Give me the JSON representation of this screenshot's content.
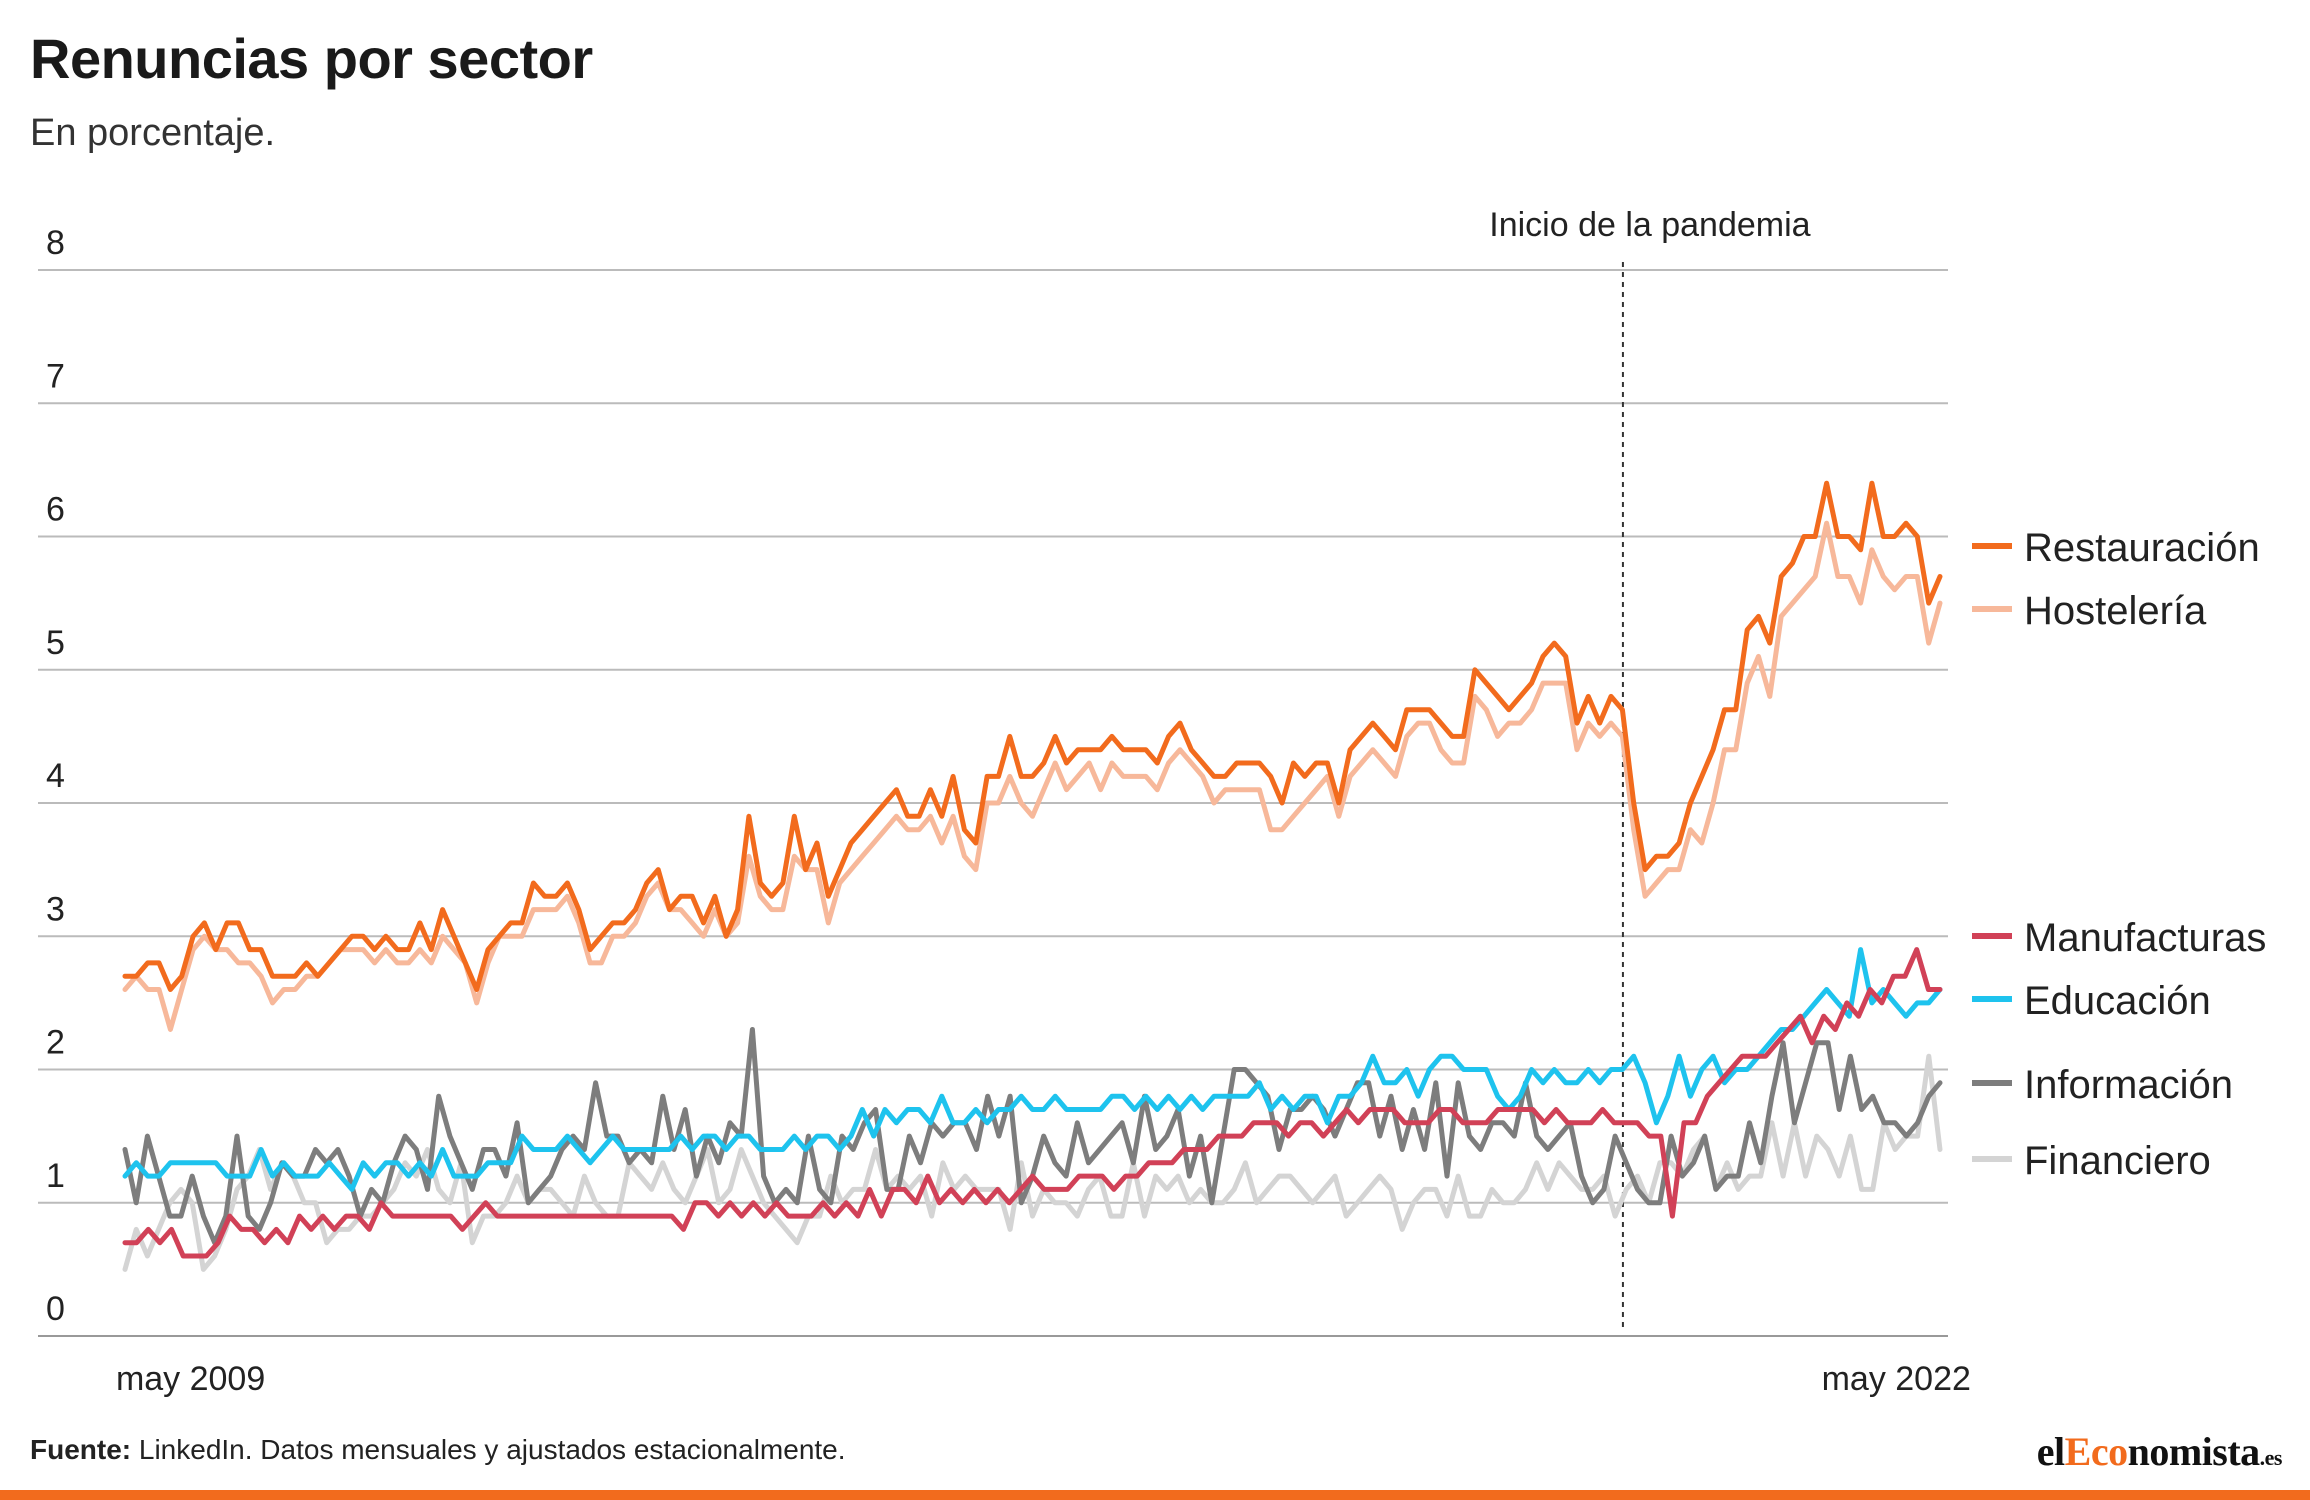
{
  "header": {
    "title": "Renuncias por sector",
    "subtitle": "En porcentaje."
  },
  "annotation": {
    "label": "Inicio de la pandemia"
  },
  "footer": {
    "source_label": "Fuente:",
    "source_text": " LinkedIn. Datos mensuales y ajustados estacionalmente.",
    "logo_part1": "el",
    "logo_part2": "Eco",
    "logo_part3": "nomista",
    "logo_suffix": ".es"
  },
  "chart_data": {
    "type": "line",
    "x_start": "2008-11",
    "x_end": "2022-09",
    "x_tick_labels": [
      "may 2009",
      "may 2022"
    ],
    "x_tick_dates": [
      "2009-05",
      "2022-05"
    ],
    "ylim": [
      0,
      8
    ],
    "y_ticks": [
      0,
      1,
      2,
      3,
      4,
      5,
      6,
      7,
      8
    ],
    "grid": true,
    "legend_placement": "right",
    "event_marker": {
      "label": "Inicio de la pandemia",
      "date": "2020-04"
    },
    "series": [
      {
        "name": "Restauración",
        "color": "#f26b1d",
        "values": [
          2.7,
          2.7,
          2.8,
          2.8,
          2.6,
          2.7,
          3.0,
          3.1,
          2.9,
          3.1,
          3.1,
          2.9,
          2.9,
          2.7,
          2.7,
          2.7,
          2.8,
          2.7,
          2.8,
          2.9,
          3.0,
          3.0,
          2.9,
          3.0,
          2.9,
          2.9,
          3.1,
          2.9,
          3.2,
          3.0,
          2.8,
          2.6,
          2.9,
          3.0,
          3.1,
          3.1,
          3.4,
          3.3,
          3.3,
          3.4,
          3.2,
          2.9,
          3.0,
          3.1,
          3.1,
          3.2,
          3.4,
          3.5,
          3.2,
          3.3,
          3.3,
          3.1,
          3.3,
          3.0,
          3.2,
          3.9,
          3.4,
          3.3,
          3.4,
          3.9,
          3.5,
          3.7,
          3.3,
          3.5,
          3.7,
          3.8,
          3.9,
          4.0,
          4.1,
          3.9,
          3.9,
          4.1,
          3.9,
          4.2,
          3.8,
          3.7,
          4.2,
          4.2,
          4.5,
          4.2,
          4.2,
          4.3,
          4.5,
          4.3,
          4.4,
          4.4,
          4.4,
          4.5,
          4.4,
          4.4,
          4.4,
          4.3,
          4.5,
          4.6,
          4.4,
          4.3,
          4.2,
          4.2,
          4.3,
          4.3,
          4.3,
          4.2,
          4.0,
          4.3,
          4.2,
          4.3,
          4.3,
          4.0,
          4.4,
          4.5,
          4.6,
          4.5,
          4.4,
          4.7,
          4.7,
          4.7,
          4.6,
          4.5,
          4.5,
          5.0,
          4.9,
          4.8,
          4.7,
          4.8,
          4.9,
          5.1,
          5.2,
          5.1,
          4.6,
          4.8,
          4.6,
          4.8,
          4.7,
          4.0,
          3.5,
          3.6,
          3.6,
          3.7,
          4.0,
          4.2,
          4.4,
          4.7,
          4.7,
          5.3,
          5.4,
          5.2,
          5.7,
          5.8,
          6.0,
          6.0,
          6.4,
          6.0,
          6.0,
          5.9,
          6.4,
          6.0,
          6.0,
          6.1,
          6.0,
          5.5,
          5.7
        ]
      },
      {
        "name": "Hostelería",
        "color": "#f7b89a",
        "values": [
          2.6,
          2.7,
          2.6,
          2.6,
          2.3,
          2.6,
          2.9,
          3.0,
          2.9,
          2.9,
          2.8,
          2.8,
          2.7,
          2.5,
          2.6,
          2.6,
          2.7,
          2.7,
          2.8,
          2.9,
          2.9,
          2.9,
          2.8,
          2.9,
          2.8,
          2.8,
          2.9,
          2.8,
          3.0,
          2.9,
          2.8,
          2.5,
          2.8,
          3.0,
          3.0,
          3.0,
          3.2,
          3.2,
          3.2,
          3.3,
          3.1,
          2.8,
          2.8,
          3.0,
          3.0,
          3.1,
          3.3,
          3.4,
          3.2,
          3.2,
          3.1,
          3.0,
          3.2,
          3.0,
          3.1,
          3.6,
          3.3,
          3.2,
          3.2,
          3.6,
          3.5,
          3.5,
          3.1,
          3.4,
          3.5,
          3.6,
          3.7,
          3.8,
          3.9,
          3.8,
          3.8,
          3.9,
          3.7,
          3.9,
          3.6,
          3.5,
          4.0,
          4.0,
          4.2,
          4.0,
          3.9,
          4.1,
          4.3,
          4.1,
          4.2,
          4.3,
          4.1,
          4.3,
          4.2,
          4.2,
          4.2,
          4.1,
          4.3,
          4.4,
          4.3,
          4.2,
          4.0,
          4.1,
          4.1,
          4.1,
          4.1,
          3.8,
          3.8,
          3.9,
          4.0,
          4.1,
          4.2,
          3.9,
          4.2,
          4.3,
          4.4,
          4.3,
          4.2,
          4.5,
          4.6,
          4.6,
          4.4,
          4.3,
          4.3,
          4.8,
          4.7,
          4.5,
          4.6,
          4.6,
          4.7,
          4.9,
          4.9,
          4.9,
          4.4,
          4.6,
          4.5,
          4.6,
          4.5,
          3.8,
          3.3,
          3.4,
          3.5,
          3.5,
          3.8,
          3.7,
          4.0,
          4.4,
          4.4,
          4.9,
          5.1,
          4.8,
          5.4,
          5.5,
          5.6,
          5.7,
          6.1,
          5.7,
          5.7,
          5.5,
          5.9,
          5.7,
          5.6,
          5.7,
          5.7,
          5.2,
          5.5
        ]
      },
      {
        "name": "Manufacturas",
        "color": "#d14157",
        "values": [
          0.7,
          0.7,
          0.8,
          0.7,
          0.8,
          0.6,
          0.6,
          0.6,
          0.7,
          0.9,
          0.8,
          0.8,
          0.7,
          0.8,
          0.7,
          0.9,
          0.8,
          0.9,
          0.8,
          0.9,
          0.9,
          0.8,
          1.0,
          0.9,
          0.9,
          0.9,
          0.9,
          0.9,
          0.9,
          0.8,
          0.9,
          1.0,
          0.9,
          0.9,
          0.9,
          0.9,
          0.9,
          0.9,
          0.9,
          0.9,
          0.9,
          0.9,
          0.9,
          0.9,
          0.9,
          0.9,
          0.9,
          0.9,
          0.8,
          1.0,
          1.0,
          0.9,
          1.0,
          0.9,
          1.0,
          0.9,
          1.0,
          0.9,
          0.9,
          0.9,
          1.0,
          0.9,
          1.0,
          0.9,
          1.1,
          0.9,
          1.1,
          1.1,
          1.0,
          1.2,
          1.0,
          1.1,
          1.0,
          1.1,
          1.0,
          1.1,
          1.0,
          1.1,
          1.2,
          1.1,
          1.1,
          1.1,
          1.2,
          1.2,
          1.2,
          1.1,
          1.2,
          1.2,
          1.3,
          1.3,
          1.3,
          1.4,
          1.4,
          1.4,
          1.5,
          1.5,
          1.5,
          1.6,
          1.6,
          1.6,
          1.5,
          1.6,
          1.6,
          1.5,
          1.6,
          1.7,
          1.6,
          1.7,
          1.7,
          1.7,
          1.6,
          1.6,
          1.6,
          1.7,
          1.7,
          1.6,
          1.6,
          1.6,
          1.7,
          1.7,
          1.7,
          1.7,
          1.6,
          1.7,
          1.6,
          1.6,
          1.6,
          1.7,
          1.6,
          1.6,
          1.6,
          1.5,
          1.5,
          0.9,
          1.6,
          1.6,
          1.8,
          1.9,
          2.0,
          2.1,
          2.1,
          2.1,
          2.2,
          2.3,
          2.4,
          2.2,
          2.4,
          2.3,
          2.5,
          2.4,
          2.6,
          2.5,
          2.7,
          2.7,
          2.9,
          2.6,
          2.6
        ]
      },
      {
        "name": "Educación",
        "color": "#1ec3ee",
        "values": [
          1.2,
          1.3,
          1.2,
          1.2,
          1.3,
          1.3,
          1.3,
          1.3,
          1.3,
          1.2,
          1.2,
          1.2,
          1.4,
          1.2,
          1.3,
          1.2,
          1.2,
          1.2,
          1.3,
          1.2,
          1.1,
          1.3,
          1.2,
          1.3,
          1.3,
          1.2,
          1.3,
          1.2,
          1.4,
          1.2,
          1.2,
          1.2,
          1.3,
          1.3,
          1.3,
          1.5,
          1.4,
          1.4,
          1.4,
          1.5,
          1.4,
          1.3,
          1.4,
          1.5,
          1.4,
          1.4,
          1.4,
          1.4,
          1.4,
          1.5,
          1.4,
          1.5,
          1.5,
          1.4,
          1.5,
          1.5,
          1.4,
          1.4,
          1.4,
          1.5,
          1.4,
          1.5,
          1.5,
          1.4,
          1.5,
          1.7,
          1.5,
          1.7,
          1.6,
          1.7,
          1.7,
          1.6,
          1.8,
          1.6,
          1.6,
          1.7,
          1.6,
          1.7,
          1.7,
          1.8,
          1.7,
          1.7,
          1.8,
          1.7,
          1.7,
          1.7,
          1.7,
          1.8,
          1.8,
          1.7,
          1.8,
          1.7,
          1.8,
          1.7,
          1.8,
          1.7,
          1.8,
          1.8,
          1.8,
          1.8,
          1.9,
          1.7,
          1.8,
          1.7,
          1.8,
          1.8,
          1.6,
          1.8,
          1.8,
          1.9,
          2.1,
          1.9,
          1.9,
          2.0,
          1.8,
          2.0,
          2.1,
          2.1,
          2.0,
          2.0,
          2.0,
          1.8,
          1.7,
          1.8,
          2.0,
          1.9,
          2.0,
          1.9,
          1.9,
          2.0,
          1.9,
          2.0,
          2.0,
          2.1,
          1.9,
          1.6,
          1.8,
          2.1,
          1.8,
          2.0,
          2.1,
          1.9,
          2.0,
          2.0,
          2.1,
          2.2,
          2.3,
          2.3,
          2.4,
          2.5,
          2.6,
          2.5,
          2.4,
          2.9,
          2.5,
          2.6,
          2.5,
          2.4,
          2.5,
          2.5,
          2.6
        ]
      },
      {
        "name": "Información",
        "color": "#7d7d7d",
        "values": [
          1.4,
          1.0,
          1.5,
          1.2,
          0.9,
          0.9,
          1.2,
          0.9,
          0.7,
          0.9,
          1.5,
          0.9,
          0.8,
          1.0,
          1.3,
          1.2,
          1.2,
          1.4,
          1.3,
          1.4,
          1.2,
          0.9,
          1.1,
          1.0,
          1.3,
          1.5,
          1.4,
          1.1,
          1.8,
          1.5,
          1.3,
          1.1,
          1.4,
          1.4,
          1.2,
          1.6,
          1.0,
          1.1,
          1.2,
          1.4,
          1.5,
          1.4,
          1.9,
          1.5,
          1.5,
          1.3,
          1.4,
          1.3,
          1.8,
          1.4,
          1.7,
          1.2,
          1.5,
          1.3,
          1.6,
          1.5,
          2.3,
          1.2,
          1.0,
          1.1,
          1.0,
          1.5,
          1.1,
          1.0,
          1.5,
          1.4,
          1.6,
          1.7,
          1.1,
          1.1,
          1.5,
          1.3,
          1.6,
          1.5,
          1.6,
          1.6,
          1.4,
          1.8,
          1.5,
          1.8,
          1.0,
          1.2,
          1.5,
          1.3,
          1.2,
          1.6,
          1.3,
          1.4,
          1.5,
          1.6,
          1.3,
          1.8,
          1.4,
          1.5,
          1.7,
          1.2,
          1.5,
          1.0,
          1.5,
          2.0,
          2.0,
          1.9,
          1.8,
          1.4,
          1.7,
          1.7,
          1.8,
          1.7,
          1.5,
          1.7,
          1.9,
          1.9,
          1.5,
          1.8,
          1.4,
          1.7,
          1.4,
          1.9,
          1.2,
          1.9,
          1.5,
          1.4,
          1.6,
          1.6,
          1.5,
          1.9,
          1.5,
          1.4,
          1.5,
          1.6,
          1.2,
          1.0,
          1.1,
          1.5,
          1.3,
          1.1,
          1.0,
          1.0,
          1.5,
          1.2,
          1.3,
          1.5,
          1.1,
          1.2,
          1.2,
          1.6,
          1.3,
          1.8,
          2.2,
          1.6,
          1.9,
          2.2,
          2.2,
          1.7,
          2.1,
          1.7,
          1.8,
          1.6,
          1.6,
          1.5,
          1.6,
          1.8,
          1.9
        ]
      },
      {
        "name": "Financiero",
        "color": "#d4d4d4",
        "values": [
          0.5,
          0.8,
          0.6,
          0.8,
          1.0,
          1.1,
          1.0,
          0.5,
          0.6,
          0.8,
          1.1,
          1.2,
          1.4,
          1.1,
          1.3,
          1.2,
          1.0,
          1.0,
          0.7,
          0.8,
          0.8,
          0.9,
          0.9,
          1.0,
          1.1,
          1.3,
          1.2,
          1.4,
          1.1,
          1.0,
          1.3,
          0.7,
          0.9,
          0.9,
          1.0,
          1.2,
          1.0,
          1.1,
          1.1,
          1.0,
          0.9,
          1.2,
          1.0,
          0.9,
          0.9,
          1.3,
          1.2,
          1.1,
          1.3,
          1.1,
          1.0,
          1.2,
          1.4,
          1.0,
          1.1,
          1.4,
          1.2,
          1.0,
          0.9,
          0.8,
          0.7,
          0.9,
          0.9,
          1.2,
          1.0,
          1.1,
          1.1,
          1.4,
          1.1,
          1.2,
          1.1,
          1.2,
          0.9,
          1.3,
          1.1,
          1.2,
          1.1,
          1.1,
          1.1,
          0.8,
          1.3,
          0.9,
          1.1,
          1.0,
          1.0,
          0.9,
          1.1,
          1.2,
          0.9,
          0.9,
          1.3,
          0.9,
          1.2,
          1.1,
          1.2,
          1.0,
          1.1,
          1.0,
          1.0,
          1.1,
          1.3,
          1.0,
          1.1,
          1.2,
          1.2,
          1.1,
          1.0,
          1.1,
          1.2,
          0.9,
          1.0,
          1.1,
          1.2,
          1.1,
          0.8,
          1.0,
          1.1,
          1.1,
          0.9,
          1.2,
          0.9,
          0.9,
          1.1,
          1.0,
          1.0,
          1.1,
          1.3,
          1.1,
          1.3,
          1.2,
          1.1,
          1.1,
          1.2,
          0.9,
          1.1,
          1.2,
          1.0,
          1.3,
          1.3,
          1.2,
          1.4,
          1.5,
          1.1,
          1.3,
          1.1,
          1.2,
          1.2,
          1.6,
          1.2,
          1.6,
          1.2,
          1.5,
          1.4,
          1.2,
          1.5,
          1.1,
          1.1,
          1.6,
          1.4,
          1.5,
          1.5,
          2.1,
          1.4
        ]
      }
    ]
  }
}
